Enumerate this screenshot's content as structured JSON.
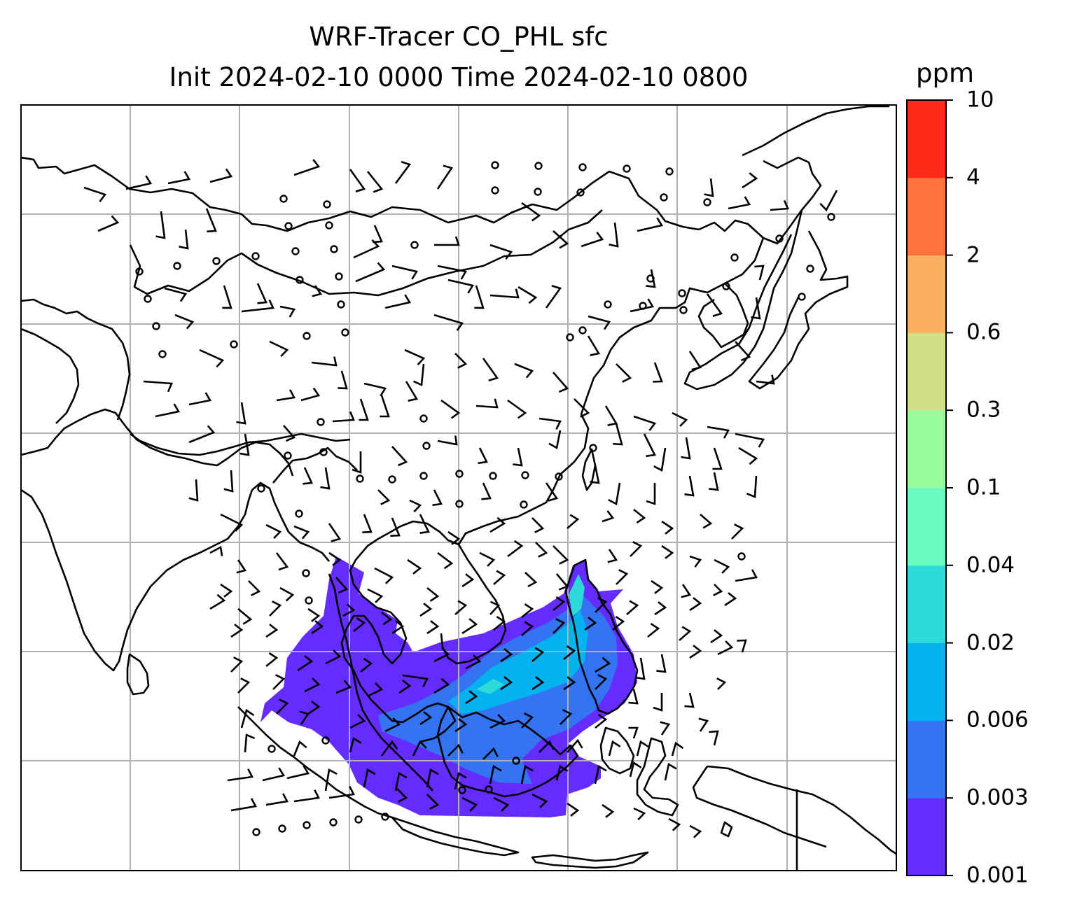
{
  "title": {
    "line1": "WRF-Tracer CO_PHL sfc",
    "line2": "Init 2024-02-10 0000 Time 2024-02-10 0800"
  },
  "colorbar": {
    "units": "ppm",
    "levels": [
      "0.001",
      "0.003",
      "0.006",
      "0.02",
      "0.04",
      "0.1",
      "0.3",
      "0.6",
      "2",
      "4",
      "10"
    ],
    "colors": [
      "#652cff",
      "#3473f1",
      "#04b2ef",
      "#2edad8",
      "#68fac0",
      "#9afb9c",
      "#d0e088",
      "#fcaf61",
      "#fe723e",
      "#fe2a1a"
    ]
  },
  "map": {
    "type": "filled-contour-with-wind-barbs",
    "projection": "lambert-conformal",
    "gridlines": true,
    "coastlines": true,
    "borders": true,
    "barb_legend": "calm winds shown as small circles",
    "plume_region": "South China Sea / Philippines / Indochina",
    "colors": {
      "land_outline": "#000000",
      "gridline": "#b0b0b0",
      "plume_low": "#652cff",
      "plume_mid": "#3473f1",
      "plume_high": "#04b2ef",
      "plume_peak": "#2edad8"
    }
  }
}
